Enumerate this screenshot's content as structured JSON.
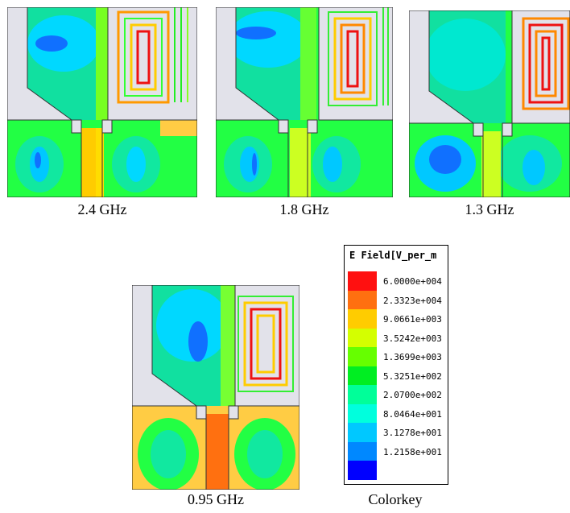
{
  "panels": [
    {
      "id": "p24",
      "caption": "2.4 GHz"
    },
    {
      "id": "p18",
      "caption": "1.8 GHz"
    },
    {
      "id": "p13",
      "caption": "1.3 GHz"
    },
    {
      "id": "p095",
      "caption": "0.95 GHz"
    }
  ],
  "colorkey": {
    "caption": "Colorkey",
    "title": "E Field[V_per_m",
    "levels": [
      {
        "label": "6.0000e+004",
        "color": "#ff1010"
      },
      {
        "label": "2.3323e+004",
        "color": "#ff7010"
      },
      {
        "label": "9.0661e+003",
        "color": "#ffcc00"
      },
      {
        "label": "3.5242e+003",
        "color": "#d4ff00"
      },
      {
        "label": "1.3699e+003",
        "color": "#66ff00"
      },
      {
        "label": "5.3251e+002",
        "color": "#00ee22"
      },
      {
        "label": "2.0700e+002",
        "color": "#00ff99"
      },
      {
        "label": "8.0464e+001",
        "color": "#00ffdd"
      },
      {
        "label": "3.1278e+001",
        "color": "#00c8ff"
      },
      {
        "label": "1.2158e+001",
        "color": "#0088ff"
      },
      {
        "label": "",
        "color": "#0000ff"
      }
    ]
  }
}
